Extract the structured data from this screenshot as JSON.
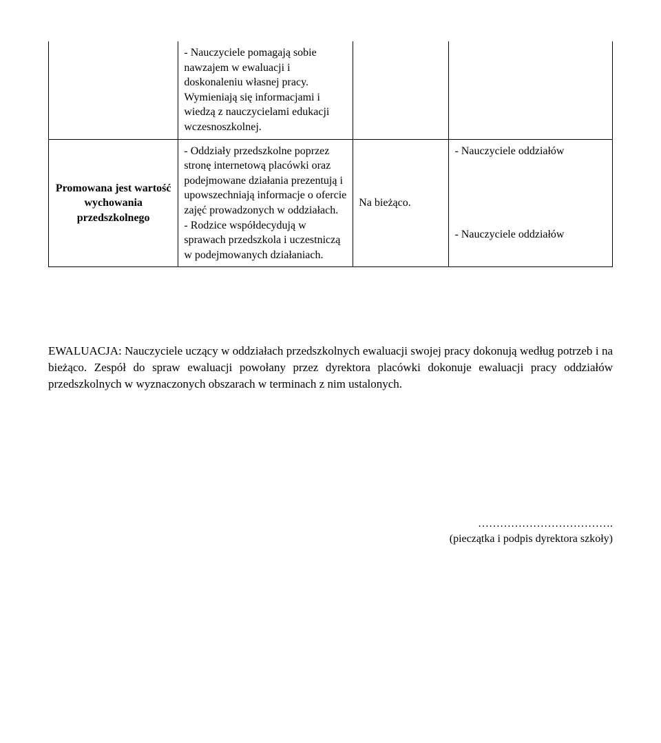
{
  "table": {
    "row0": {
      "col2": "- Nauczyciele pomagają sobie nawzajem w ewaluacji i doskonaleniu własnej pracy. Wymieniają się informacjami i wiedzą z nauczycielami edukacji wczesnoszkolnej."
    },
    "row1": {
      "col1": "Promowana jest wartość wychowania przedszkolnego",
      "col2a": "- Oddziały przedszkolne poprzez stronę internetową placówki oraz podejmowane działania prezentują i upowszechniają informacje o ofercie zajęć prowadzonych w oddziałach.",
      "col2b": "- Rodzice współdecydują w sprawach przedszkola i uczestniczą w podejmowanych działaniach.",
      "col3": "Na bieżąco.",
      "col4a": "- Nauczyciele oddziałów",
      "col4b": "- Nauczyciele oddziałów"
    }
  },
  "evaluation": {
    "label": "EWALUACJA:",
    "text": "  Nauczyciele uczący w oddziałach przedszkolnych ewaluacji swojej pracy dokonują według potrzeb i na bieżąco. Zespół do spraw ewaluacji powołany przez dyrektora placówki dokonuje ewaluacji pracy oddziałów przedszkolnych w wyznaczonych obszarach w terminach z nim ustalonych."
  },
  "signature": {
    "dots": "……………………………….",
    "caption": "(pieczątka i podpis dyrektora szkoły)"
  }
}
